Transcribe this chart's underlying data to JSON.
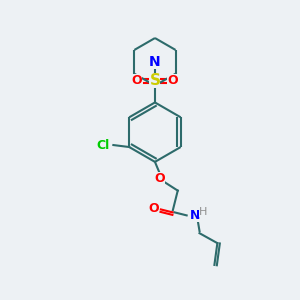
{
  "background_color": "#edf1f4",
  "bond_color": "#2d6b6b",
  "atom_colors": {
    "N": "#0000ff",
    "O": "#ff0000",
    "S": "#cccc00",
    "Cl": "#00cc00",
    "H": "#909090",
    "C": "#2d6b6b"
  },
  "figsize": [
    3.0,
    3.0
  ],
  "dpi": 100
}
